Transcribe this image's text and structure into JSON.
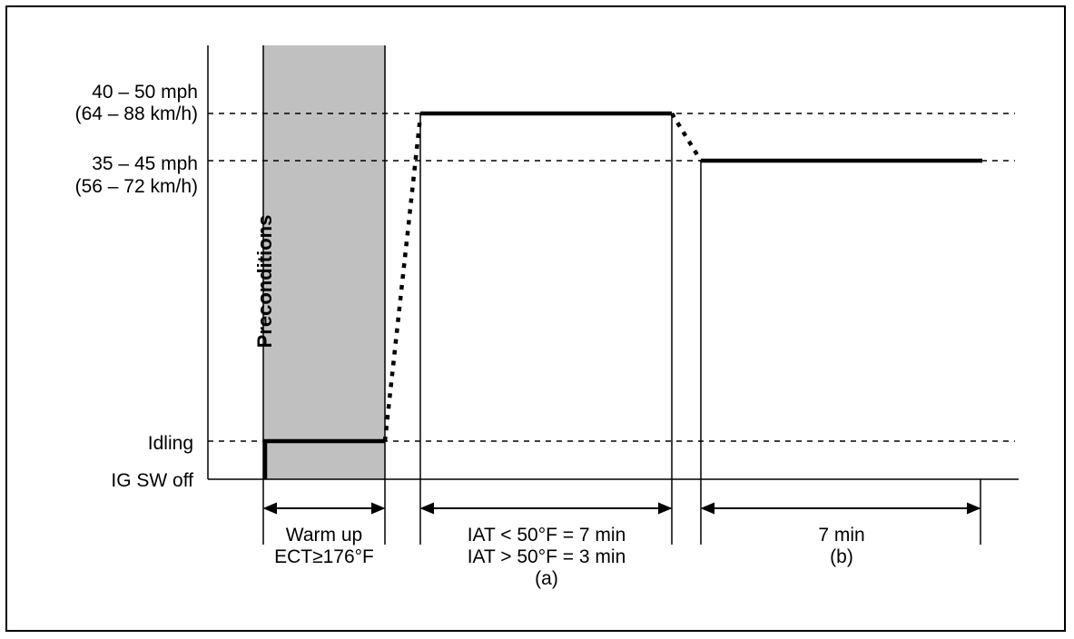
{
  "y_levels": {
    "high": [
      "40 – 50 mph",
      "(64 – 88 km/h)"
    ],
    "mid": [
      "35 – 45 mph",
      "(56 – 72 km/h)"
    ],
    "idling": "Idling",
    "off": "IG SW off"
  },
  "phases": {
    "precondition_label": "Preconditions",
    "warmup": [
      "Warm up",
      "ECT≥176°F"
    ],
    "a": [
      "IAT < 50°F = 7 min",
      "IAT > 50°F = 3 min",
      "(a)"
    ],
    "b": [
      "7 min",
      "(b)"
    ]
  },
  "colors": {
    "shade": "#c0c0c0",
    "line": "#000000"
  }
}
